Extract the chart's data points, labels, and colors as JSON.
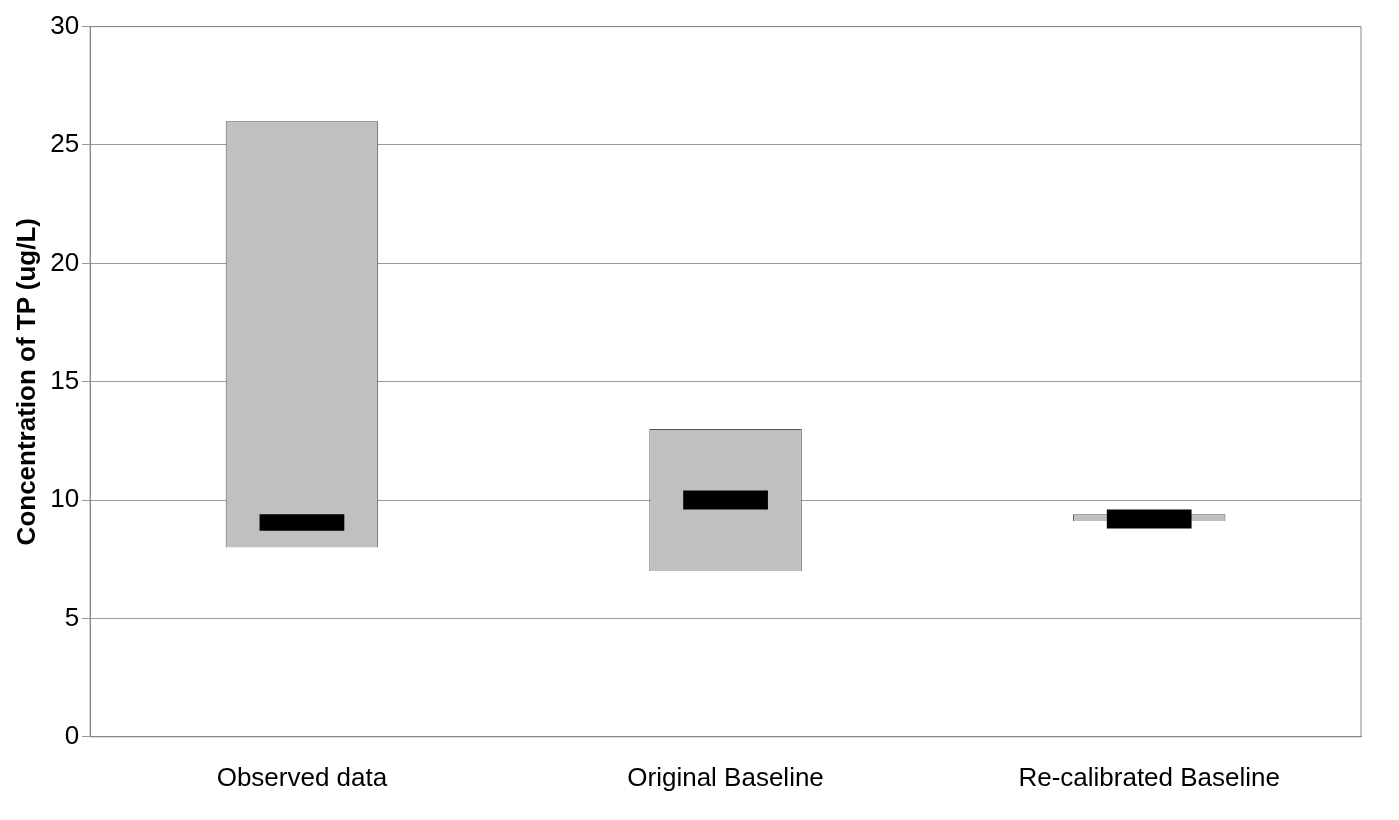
{
  "chart_data": {
    "type": "bar",
    "ylabel": "Concentration of TP (ug/L)",
    "categories": [
      "Observed data",
      "Original Baseline",
      "Re-calibrated Baseline"
    ],
    "series": [
      {
        "color": "#c0c0c0",
        "base": [
          8,
          7,
          9.1
        ],
        "values": [
          18,
          6,
          0.3
        ]
      },
      {
        "color": "#000000",
        "base": [
          8.7,
          9.6,
          8.8
        ],
        "values": [
          0.7,
          0.8,
          0.8
        ]
      }
    ],
    "ylim": [
      0,
      30
    ],
    "yticks": [
      0,
      5,
      10,
      15,
      20,
      25,
      30
    ],
    "grid": "y",
    "legend": false
  }
}
